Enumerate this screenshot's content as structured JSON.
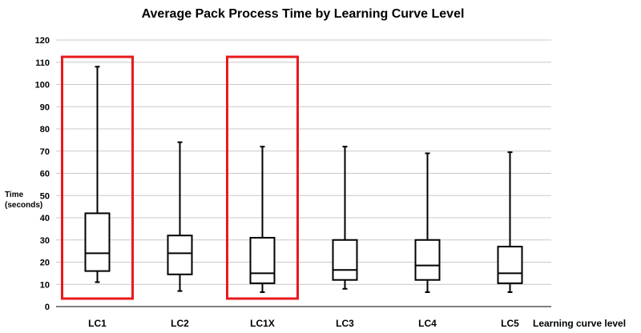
{
  "chart_data": {
    "type": "box",
    "title": "Average Pack Process Time by Learning Curve Level",
    "xlabel": "Learning curve level",
    "ylabel_lines": [
      "Time",
      "(seconds)"
    ],
    "ylim": [
      0,
      120
    ],
    "ytick_step": 10,
    "grid": true,
    "categories": [
      "LC1",
      "LC2",
      "LC1X",
      "LC3",
      "LC4",
      "LC5"
    ],
    "boxes": [
      {
        "label": "LC1",
        "min": 11,
        "q1": 16,
        "median": 24,
        "q3": 42,
        "max": 108
      },
      {
        "label": "LC2",
        "min": 7,
        "q1": 14.5,
        "median": 24,
        "q3": 32,
        "max": 74
      },
      {
        "label": "LC1X",
        "min": 6.5,
        "q1": 10.5,
        "median": 15,
        "q3": 31,
        "max": 72
      },
      {
        "label": "LC3",
        "min": 8,
        "q1": 12,
        "median": 16.5,
        "q3": 30,
        "max": 72
      },
      {
        "label": "LC4",
        "min": 6.5,
        "q1": 12,
        "median": 18.5,
        "q3": 30,
        "max": 69
      },
      {
        "label": "LC5",
        "min": 6.5,
        "q1": 10.5,
        "median": 15,
        "q3": 27,
        "max": 69.5
      }
    ],
    "highlighted_categories": [
      "LC1",
      "LC1X"
    ],
    "highlight_color": "#e8191c",
    "box_color": "#000000",
    "grid_color": "#c8c8c8"
  }
}
